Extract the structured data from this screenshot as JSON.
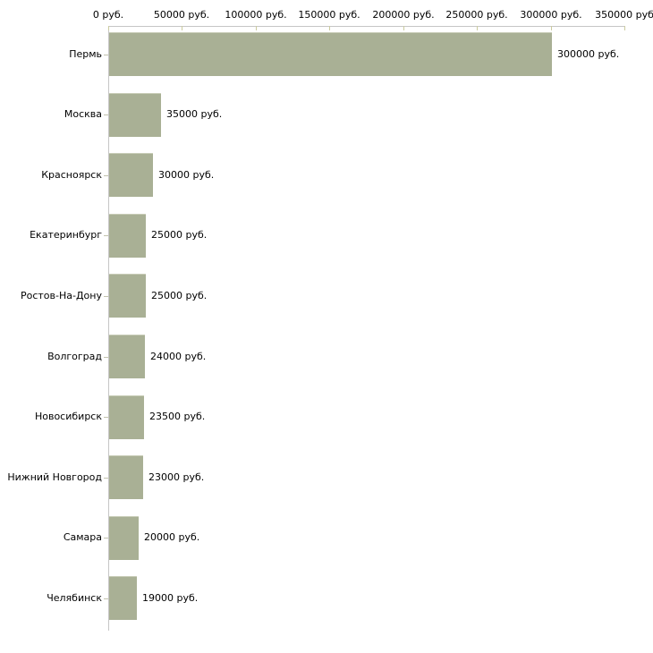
{
  "chart_data": {
    "type": "bar",
    "orientation": "horizontal",
    "title": "",
    "xlabel": "",
    "ylabel": "",
    "categories": [
      "Пермь",
      "Москва",
      "Красноярск",
      "Екатеринбург",
      "Ростов-На-Дону",
      "Волгоград",
      "Новосибирск",
      "Нижний Новгород",
      "Самара",
      "Челябинск"
    ],
    "values": [
      300000,
      35000,
      30000,
      25000,
      25000,
      24000,
      23500,
      23000,
      20000,
      19000
    ],
    "value_labels": [
      "300000 руб.",
      "35000 руб.",
      "30000 руб.",
      "25000 руб.",
      "25000 руб.",
      "24000 руб.",
      "23500 руб.",
      "23000 руб.",
      "20000 руб.",
      "19000 руб."
    ],
    "x_axis": {
      "position": "top",
      "range": [
        0,
        350000
      ],
      "tick_values": [
        0,
        50000,
        100000,
        150000,
        200000,
        250000,
        300000,
        350000
      ],
      "tick_labels": [
        "0 руб.",
        "50000 руб.",
        "100000 руб.",
        "150000 руб.",
        "200000 руб.",
        "250000 руб.",
        "300000 руб.",
        "350000 руб"
      ]
    },
    "grid": false,
    "legend": false,
    "colors": {
      "bar_fill": "#a9b095",
      "bar_top_edge": "#c9cdb8",
      "axis_line": "#c6c6c6",
      "axis_tick": "#cbcb9f",
      "text": "#000000",
      "background": "#ffffff"
    }
  }
}
